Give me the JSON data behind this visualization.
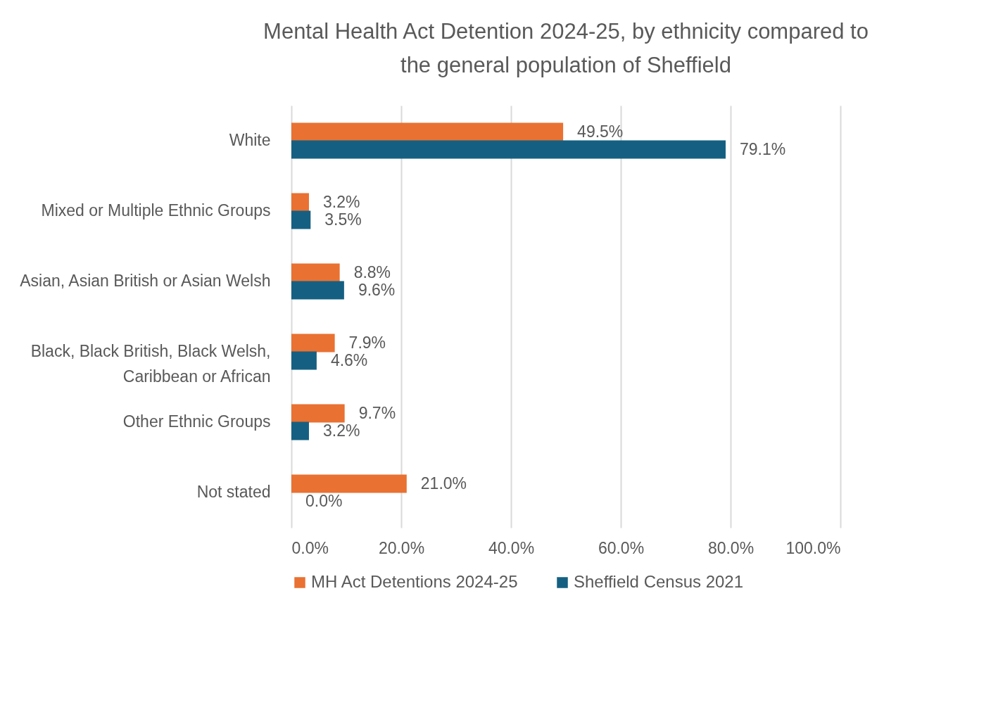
{
  "chart_data": {
    "type": "bar",
    "orientation": "horizontal",
    "title": [
      "Mental Health Act Detention 2024-25, by ethnicity compared to",
      "the general population of Sheffield"
    ],
    "categories": [
      "White",
      "Mixed or Multiple Ethnic Groups",
      "Asian, Asian British or Asian Welsh",
      "Black, Black British, Black Welsh, Caribbean or African",
      "Other Ethnic Groups",
      "Not stated"
    ],
    "series": [
      {
        "name": "MH Act Detentions 2024-25",
        "color": "#e97132",
        "values": [
          49.5,
          3.2,
          8.8,
          7.9,
          9.7,
          21.0
        ],
        "value_labels": [
          "49.5%",
          "3.2%",
          "8.8%",
          "7.9%",
          "9.7%",
          "21.0%"
        ]
      },
      {
        "name": "Sheffield Census 2021",
        "color": "#156082",
        "values": [
          79.1,
          3.5,
          9.6,
          4.6,
          3.2,
          0.0
        ],
        "value_labels": [
          "79.1%",
          "3.5%",
          "9.6%",
          "4.6%",
          "3.2%",
          "0.0%"
        ]
      }
    ],
    "xlim": [
      0,
      100
    ],
    "xticks": [
      {
        "value": 0,
        "label": "0.0%"
      },
      {
        "value": 20,
        "label": "20.0%"
      },
      {
        "value": 40,
        "label": "40.0%"
      },
      {
        "value": 60,
        "label": "60.0%"
      },
      {
        "value": 80,
        "label": "80.0%"
      },
      {
        "value": 100,
        "label": "100.0%"
      }
    ],
    "grid": "x",
    "legend": "bottom"
  }
}
